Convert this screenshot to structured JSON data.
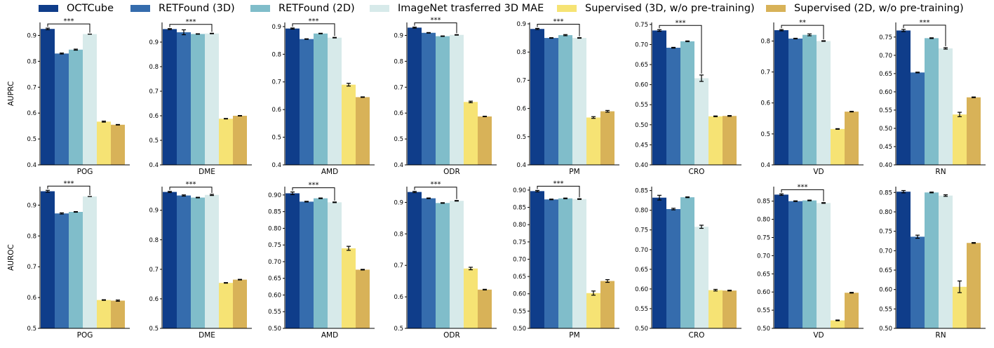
{
  "legend": [
    {
      "label": "OCTCube",
      "color": "#0f3d8a"
    },
    {
      "label": "RETFound (3D)",
      "color": "#356cad"
    },
    {
      "label": "RETFound (2D)",
      "color": "#80bdca"
    },
    {
      "label": "ImageNet trasferred 3D MAE",
      "color": "#d7eaea"
    },
    {
      "label": "Supervised (3D, w/o pre-training)",
      "color": "#f6e374"
    },
    {
      "label": "Supervised (2D, w/o pre-training)",
      "color": "#d8b258"
    }
  ],
  "chart_data": [
    {
      "type": "bar",
      "row": "AUPRC",
      "xlabel": "POG",
      "ylabel": "AUPRC",
      "ylim": [
        0.4,
        0.95
      ],
      "yticks": [
        "0.4",
        "0.5",
        "0.6",
        "0.7",
        "0.8",
        "0.9"
      ],
      "values": [
        0.925,
        0.83,
        0.845,
        0.905,
        0.567,
        0.555
      ],
      "errors": [
        0.003,
        0.002,
        0.002,
        0.0,
        0.002,
        0.001
      ],
      "significance": "***"
    },
    {
      "type": "bar",
      "row": "AUPRC",
      "xlabel": "DME",
      "ylabel": "",
      "ylim": [
        0.4,
        0.98
      ],
      "yticks": [
        "0.4",
        "0.5",
        "0.6",
        "0.7",
        "0.8",
        "0.9"
      ],
      "values": [
        0.953,
        0.94,
        0.933,
        0.935,
        0.588,
        0.6
      ],
      "errors": [
        0.002,
        0.01,
        0.001,
        0.001,
        0.001,
        0.001
      ],
      "significance": "***"
    },
    {
      "type": "bar",
      "row": "AUPRC",
      "xlabel": "AMD",
      "ylabel": "",
      "ylim": [
        0.4,
        0.915
      ],
      "yticks": [
        "0.4",
        "0.5",
        "0.6",
        "0.7",
        "0.8",
        "0.9"
      ],
      "values": [
        0.893,
        0.855,
        0.875,
        0.86,
        0.69,
        0.645
      ],
      "errors": [
        0.002,
        0.001,
        0.001,
        0.001,
        0.005,
        0.001
      ],
      "significance": "***"
    },
    {
      "type": "bar",
      "row": "AUPRC",
      "xlabel": "ODR",
      "ylabel": "",
      "ylim": [
        0.4,
        0.95
      ],
      "yticks": [
        "0.4",
        "0.5",
        "0.6",
        "0.7",
        "0.8",
        "0.9"
      ],
      "values": [
        0.93,
        0.91,
        0.897,
        0.902,
        0.643,
        0.587
      ],
      "errors": [
        0.002,
        0.001,
        0.001,
        0.001,
        0.003,
        0.001
      ],
      "significance": "***"
    },
    {
      "type": "bar",
      "row": "AUPRC",
      "xlabel": "PM",
      "ylabel": "",
      "ylim": [
        0.4,
        0.905
      ],
      "yticks": [
        "0.4",
        "0.5",
        "0.6",
        "0.7",
        "0.8",
        "0.9"
      ],
      "values": [
        0.882,
        0.85,
        0.86,
        0.85,
        0.568,
        0.59
      ],
      "errors": [
        0.002,
        0.001,
        0.002,
        0.001,
        0.003,
        0.003
      ],
      "significance": "***"
    },
    {
      "type": "bar",
      "row": "AUPRC",
      "xlabel": "CRO",
      "ylabel": "",
      "ylim": [
        0.4,
        0.755
      ],
      "yticks": [
        "0.40",
        "0.45",
        "0.50",
        "0.55",
        "0.60",
        "0.65",
        "0.70",
        "0.75"
      ],
      "values": [
        0.735,
        0.692,
        0.708,
        0.616,
        0.521,
        0.522
      ],
      "errors": [
        0.002,
        0.001,
        0.001,
        0.008,
        0.001,
        0.001
      ],
      "significance": "***"
    },
    {
      "type": "bar",
      "row": "AUPRC",
      "xlabel": "VD",
      "ylabel": "",
      "ylim": [
        0.4,
        0.86
      ],
      "yticks": [
        "0.4",
        "0.5",
        "0.6",
        "0.7",
        "0.8"
      ],
      "values": [
        0.835,
        0.808,
        0.82,
        0.8,
        0.516,
        0.572
      ],
      "errors": [
        0.002,
        0.001,
        0.003,
        0.001,
        0.001,
        0.001
      ],
      "significance": "**"
    },
    {
      "type": "bar",
      "row": "AUPRC",
      "xlabel": "RN",
      "ylabel": "",
      "ylim": [
        0.4,
        0.79
      ],
      "yticks": [
        "0.40",
        "0.45",
        "0.50",
        "0.55",
        "0.60",
        "0.65",
        "0.70",
        "0.75"
      ],
      "values": [
        0.768,
        0.653,
        0.747,
        0.719,
        0.538,
        0.585
      ],
      "errors": [
        0.003,
        0.001,
        0.001,
        0.002,
        0.006,
        0.001
      ],
      "significance": "***"
    },
    {
      "type": "bar",
      "row": "AUROC",
      "xlabel": "POG",
      "ylabel": "AUROC",
      "ylim": [
        0.5,
        0.96
      ],
      "yticks": [
        "0.5",
        "0.6",
        "0.7",
        "0.8",
        "0.9"
      ],
      "values": [
        0.945,
        0.873,
        0.878,
        0.928,
        0.592,
        0.59
      ],
      "errors": [
        0.003,
        0.002,
        0.001,
        0.0,
        0.001,
        0.002
      ],
      "significance": "***"
    },
    {
      "type": "bar",
      "row": "AUROC",
      "xlabel": "DME",
      "ylabel": "",
      "ylim": [
        0.5,
        0.98
      ],
      "yticks": [
        "0.5",
        "0.6",
        "0.7",
        "0.8",
        "0.9"
      ],
      "values": [
        0.962,
        0.95,
        0.943,
        0.952,
        0.654,
        0.665
      ],
      "errors": [
        0.002,
        0.002,
        0.001,
        0.002,
        0.001,
        0.001
      ],
      "significance": "***"
    },
    {
      "type": "bar",
      "row": "AUROC",
      "xlabel": "AMD",
      "ylabel": "",
      "ylim": [
        0.5,
        0.925
      ],
      "yticks": [
        "0.50",
        "0.55",
        "0.60",
        "0.65",
        "0.70",
        "0.75",
        "0.80",
        "0.85",
        "0.90"
      ],
      "values": [
        0.905,
        0.88,
        0.89,
        0.878,
        0.74,
        0.676
      ],
      "errors": [
        0.004,
        0.001,
        0.001,
        0.001,
        0.006,
        0.001
      ],
      "significance": "***"
    },
    {
      "type": "bar",
      "row": "AUROC",
      "xlabel": "ODR",
      "ylabel": "",
      "ylim": [
        0.5,
        0.95
      ],
      "yticks": [
        "0.5",
        "0.6",
        "0.7",
        "0.8",
        "0.9"
      ],
      "values": [
        0.933,
        0.913,
        0.898,
        0.905,
        0.69,
        0.623
      ],
      "errors": [
        0.002,
        0.001,
        0.001,
        0.001,
        0.004,
        0.001
      ],
      "significance": "***"
    },
    {
      "type": "bar",
      "row": "AUROC",
      "xlabel": "PM",
      "ylabel": "",
      "ylim": [
        0.5,
        0.91
      ],
      "yticks": [
        "0.50",
        "0.55",
        "0.60",
        "0.65",
        "0.70",
        "0.75",
        "0.80",
        "0.85",
        "0.90"
      ],
      "values": [
        0.897,
        0.873,
        0.876,
        0.874,
        0.602,
        0.637
      ],
      "errors": [
        0.002,
        0.001,
        0.001,
        0.001,
        0.006,
        0.004
      ],
      "significance": "***"
    },
    {
      "type": "bar",
      "row": "AUROC",
      "xlabel": "CRO",
      "ylabel": "",
      "ylim": [
        0.5,
        0.86
      ],
      "yticks": [
        "0.50",
        "0.55",
        "0.60",
        "0.65",
        "0.70",
        "0.75",
        "0.80",
        "0.85"
      ],
      "values": [
        0.832,
        0.803,
        0.833,
        0.758,
        0.597,
        0.596
      ],
      "errors": [
        0.006,
        0.002,
        0.001,
        0.004,
        0.002,
        0.001
      ],
      "significance": ""
    },
    {
      "type": "bar",
      "row": "AUROC",
      "xlabel": "VD",
      "ylabel": "",
      "ylim": [
        0.5,
        0.89
      ],
      "yticks": [
        "0.50",
        "0.55",
        "0.60",
        "0.65",
        "0.70",
        "0.75",
        "0.80",
        "0.85"
      ],
      "values": [
        0.868,
        0.85,
        0.852,
        0.845,
        0.522,
        0.598
      ],
      "errors": [
        0.002,
        0.001,
        0.001,
        0.001,
        0.001,
        0.001
      ],
      "significance": "***"
    },
    {
      "type": "bar",
      "row": "AUROC",
      "xlabel": "RN",
      "ylabel": "",
      "ylim": [
        0.5,
        0.865
      ],
      "yticks": [
        "0.50",
        "0.55",
        "0.60",
        "0.65",
        "0.70",
        "0.75",
        "0.80",
        "0.85"
      ],
      "values": [
        0.852,
        0.736,
        0.85,
        0.842,
        0.607,
        0.72
      ],
      "errors": [
        0.003,
        0.004,
        0.001,
        0.002,
        0.015,
        0.001
      ],
      "significance": ""
    }
  ]
}
